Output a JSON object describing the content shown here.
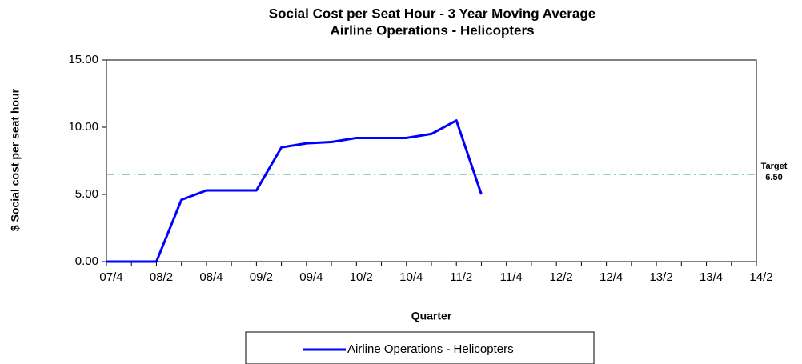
{
  "chart_data": {
    "type": "line",
    "title": "Social Cost per Seat Hour - 3 Year Moving Average",
    "subtitle": "Airline Operations  - Helicopters",
    "y_label": "$ Social cost per seat hour",
    "x_label": "Quarter",
    "categories": [
      "07/4",
      null,
      "08/2",
      null,
      "08/4",
      null,
      "09/2",
      null,
      "09/4",
      null,
      "10/2",
      null,
      "10/4",
      null,
      "11/2",
      null,
      "11/4",
      null,
      "12/2",
      null,
      "12/4",
      null,
      "13/2",
      null,
      "13/4",
      null,
      "14/2"
    ],
    "series": [
      {
        "name": "Airline Operations - Helicopters",
        "color": "#0000ff",
        "values": [
          0,
          0,
          0,
          4.6,
          5.3,
          5.3,
          5.3,
          8.5,
          8.8,
          8.9,
          9.2,
          9.2,
          9.2,
          9.5,
          10.5,
          5.0,
          null,
          null,
          null,
          null,
          null,
          null,
          null,
          null,
          null,
          null,
          null
        ]
      }
    ],
    "ylim": [
      0,
      15
    ],
    "yticks": [
      {
        "value": 0,
        "label": "0.00"
      },
      {
        "value": 5,
        "label": "5.00"
      },
      {
        "value": 10,
        "label": "10.00"
      },
      {
        "value": 15,
        "label": "15.00"
      }
    ],
    "target": {
      "name": "Target",
      "value": 6.5,
      "value_label": "6.50",
      "color": "#3a9a7a"
    },
    "grid": false
  }
}
